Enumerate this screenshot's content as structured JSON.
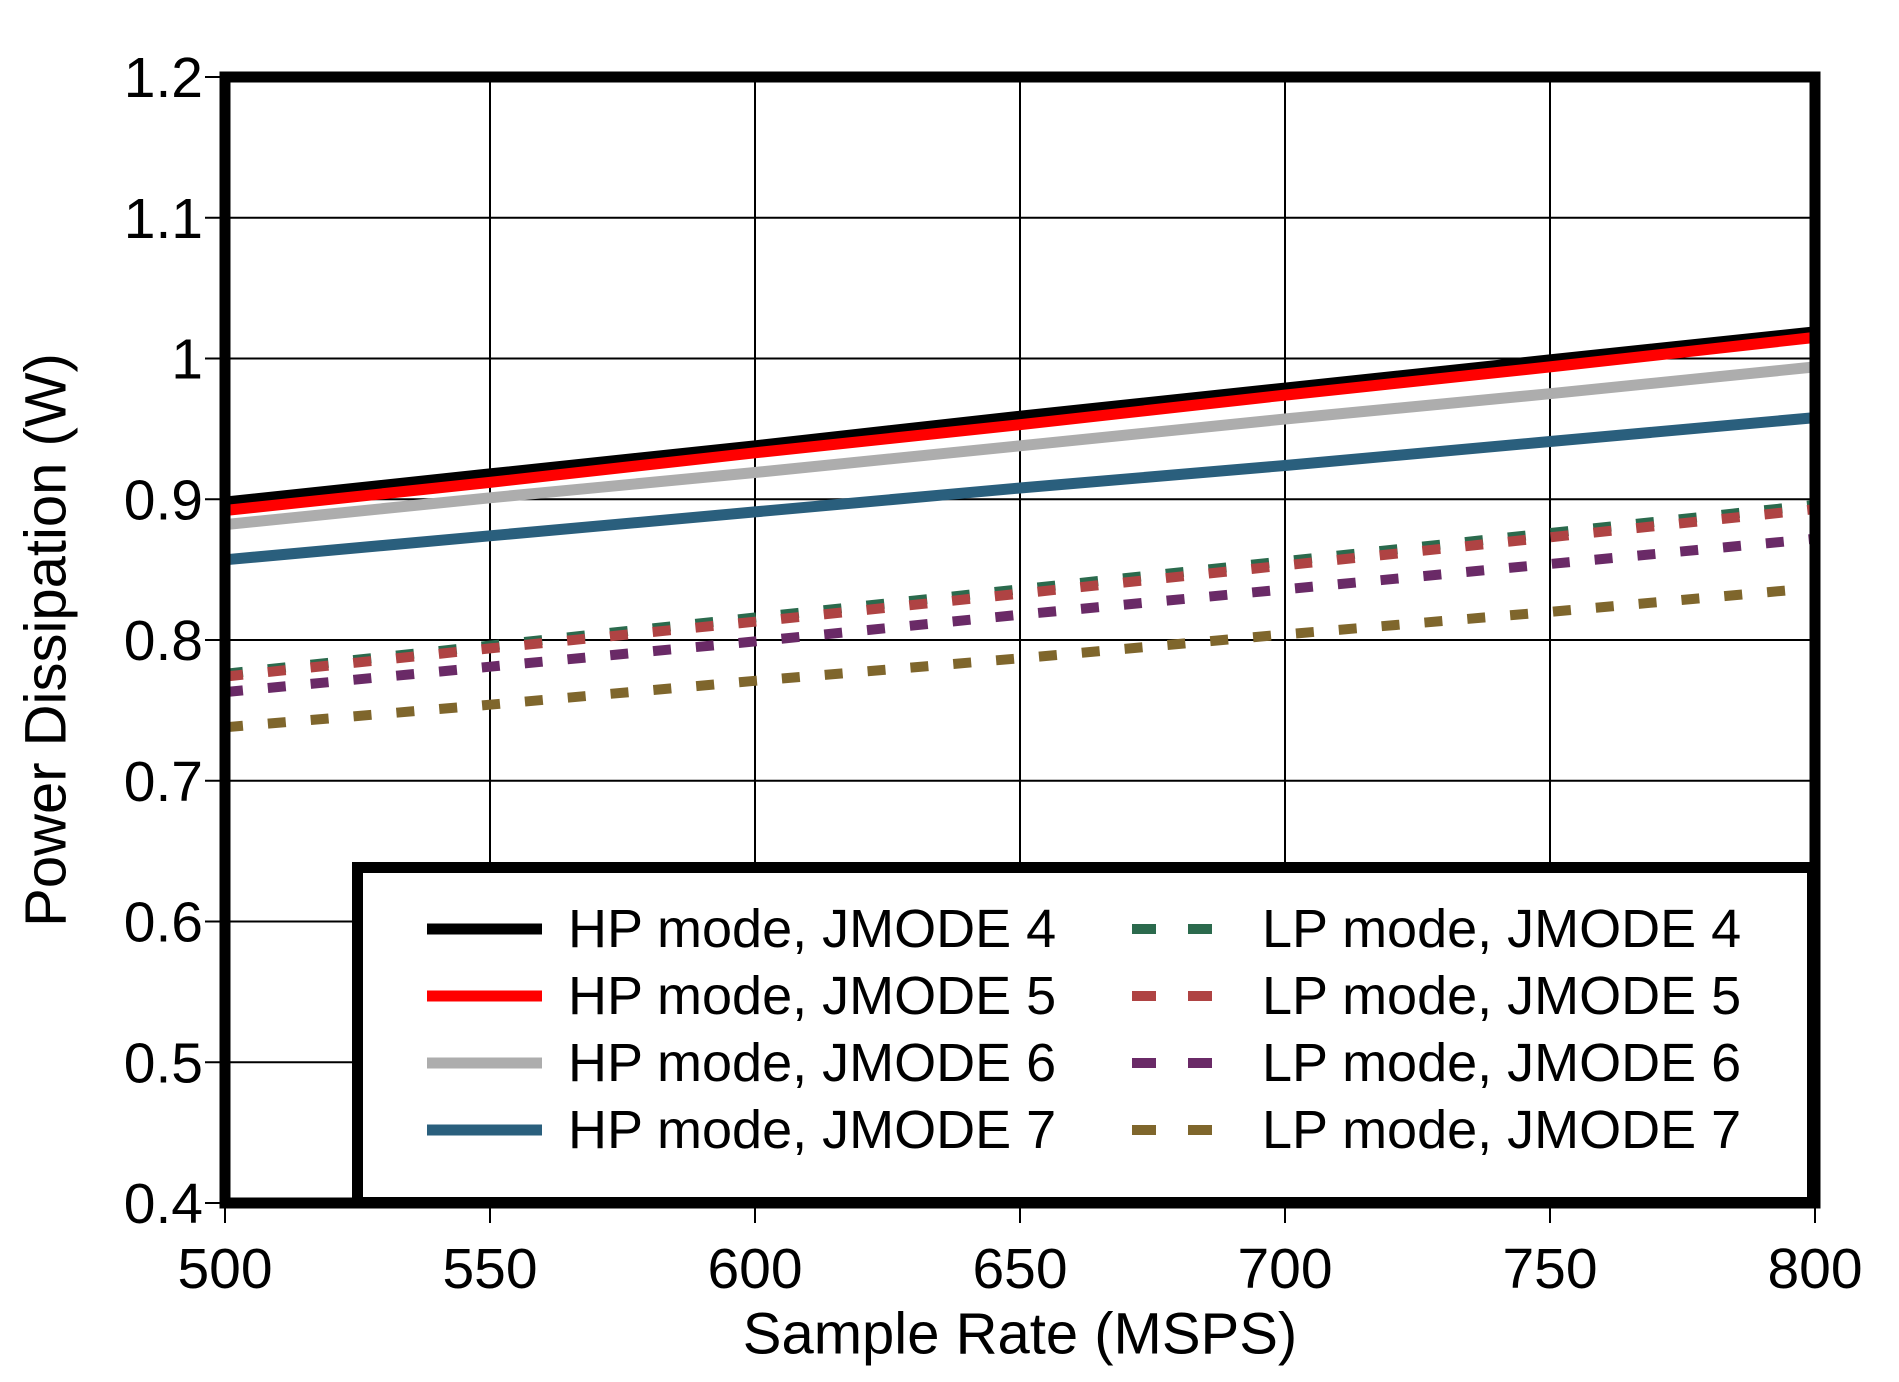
{
  "chart_data": {
    "type": "line",
    "title": "",
    "xlabel": "Sample Rate (MSPS)",
    "ylabel": "Power Dissipation (W)",
    "xlim": [
      500,
      800
    ],
    "ylim": [
      0.4,
      1.2
    ],
    "grid": true,
    "grid_color": "#000000",
    "background_color": "#ffffff",
    "legend_position": "inside lower right",
    "x_ticks": [
      500,
      550,
      600,
      650,
      700,
      750,
      800
    ],
    "x_tick_labels": [
      "500",
      "550",
      "600",
      "650",
      "700",
      "750",
      "800"
    ],
    "y_ticks": [
      0.4,
      0.5,
      0.6,
      0.7,
      0.8,
      0.9,
      1.0,
      1.1,
      1.2
    ],
    "y_tick_labels": [
      "0.4",
      "0.5",
      "0.6",
      "0.7",
      "0.8",
      "0.9",
      "1",
      "1.1",
      "1.2"
    ],
    "x": [
      500,
      550,
      600,
      650,
      700,
      750,
      800
    ],
    "series": [
      {
        "name": "HP mode, JMODE 4",
        "color": "#000000",
        "style": "solid",
        "values": [
          0.898,
          0.918,
          0.938,
          0.959,
          0.979,
          0.999,
          1.019
        ]
      },
      {
        "name": "HP mode, JMODE 5",
        "color": "#ff0000",
        "style": "solid",
        "values": [
          0.892,
          0.912,
          0.933,
          0.953,
          0.974,
          0.994,
          1.015
        ]
      },
      {
        "name": "HP mode, JMODE 6",
        "color": "#adadad",
        "style": "solid",
        "values": [
          0.882,
          0.901,
          0.919,
          0.938,
          0.957,
          0.975,
          0.994
        ]
      },
      {
        "name": "HP mode, JMODE 7",
        "color": "#2a5f7d",
        "style": "solid",
        "values": [
          0.857,
          0.874,
          0.891,
          0.908,
          0.924,
          0.941,
          0.958
        ]
      },
      {
        "name": "LP mode, JMODE 4",
        "color": "#2b6a4d",
        "style": "dashed",
        "values": [
          0.776,
          0.796,
          0.816,
          0.836,
          0.856,
          0.876,
          0.896
        ]
      },
      {
        "name": "LP mode, JMODE 5",
        "color": "#af4343",
        "style": "dashed",
        "values": [
          0.774,
          0.794,
          0.813,
          0.833,
          0.853,
          0.873,
          0.893
        ]
      },
      {
        "name": "LP mode, JMODE 6",
        "color": "#6a2a67",
        "style": "dashed",
        "values": [
          0.763,
          0.781,
          0.799,
          0.818,
          0.836,
          0.854,
          0.872
        ]
      },
      {
        "name": "LP mode, JMODE 7",
        "color": "#7f662c",
        "style": "dashed",
        "values": [
          0.738,
          0.754,
          0.771,
          0.787,
          0.804,
          0.82,
          0.837
        ]
      }
    ]
  }
}
